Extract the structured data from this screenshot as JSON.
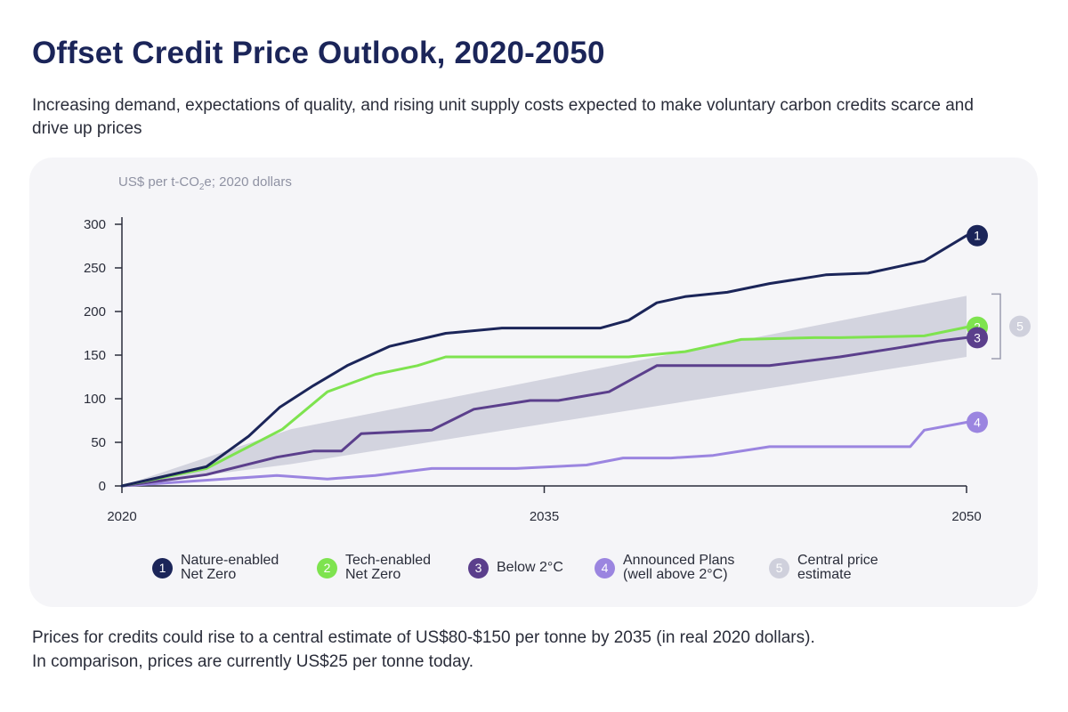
{
  "header": {
    "title": "Offset Credit Price Outlook, 2020-2050",
    "subtitle": "Increasing demand, expectations of quality, and rising unit supply costs expected to make voluntary carbon credits scarce and drive up prices"
  },
  "footer": {
    "line1": "Prices for credits could rise to a central estimate of US$80-$150 per tonne by 2035 (in real 2020 dollars).",
    "line2": "In comparison, prices are currently US$25 per tonne today."
  },
  "unit_label": {
    "main": "US$ per t-CO",
    "sub": "2",
    "tail": "e; 2020 dollars"
  },
  "colors": {
    "nature": "#1b2559",
    "tech": "#7ee34f",
    "below2": "#5b3f8c",
    "announced": "#9b85e0",
    "band": "#cfd0dc",
    "axis": "#2a2d3a",
    "panel": "#f5f5f8"
  },
  "legend": [
    {
      "badge": "1",
      "lines": [
        "Nature-enabled",
        "Net Zero"
      ],
      "color": "#1b2559"
    },
    {
      "badge": "2",
      "lines": [
        "Tech-enabled",
        "Net Zero"
      ],
      "color": "#7ee34f"
    },
    {
      "badge": "3",
      "lines": [
        "Below 2°C"
      ],
      "color": "#5b3f8c"
    },
    {
      "badge": "4",
      "lines": [
        "Announced Plans",
        "(well above 2°C)"
      ],
      "color": "#9b85e0"
    },
    {
      "badge": "5",
      "lines": [
        "Central price",
        "estimate"
      ],
      "color": "#cfd0dc"
    }
  ],
  "chart_data": {
    "type": "line",
    "title": "Offset Credit Price Outlook, 2020-2050",
    "ylabel": "US$ per t-CO2e; 2020 dollars",
    "xlabel": "",
    "xlim": [
      2020,
      2050
    ],
    "ylim": [
      0,
      300
    ],
    "x_ticks": [
      "2020",
      "2035",
      "2050"
    ],
    "y_ticks": [
      0,
      50,
      100,
      150,
      200,
      250,
      300
    ],
    "series": [
      {
        "name": "Nature-enabled Net Zero",
        "badge": "1",
        "color": "#1b2559",
        "x": [
          2020,
          2023,
          2024.5,
          2025.6,
          2026.8,
          2028,
          2029.5,
          2031.5,
          2033.5,
          2035,
          2037,
          2038,
          2039,
          2040,
          2041.5,
          2043,
          2044.6,
          2045,
          2046.5,
          2048.5,
          2050
        ],
        "y": [
          0,
          22,
          57,
          90,
          115,
          138,
          160,
          175,
          181,
          181,
          181,
          190,
          210,
          217,
          222,
          232,
          240,
          242,
          244,
          258,
          287
        ]
      },
      {
        "name": "Tech-enabled Net Zero",
        "badge": "2",
        "color": "#7ee34f",
        "x": [
          2020,
          2023,
          2025.7,
          2027.3,
          2029,
          2030.5,
          2031.5,
          2033.5,
          2036.5,
          2038,
          2040,
          2042,
          2044.6,
          2045.5,
          2048.5,
          2050
        ],
        "y": [
          0,
          20,
          65,
          108,
          128,
          138,
          148,
          148,
          148,
          148,
          154,
          168,
          170,
          170,
          172,
          182
        ]
      },
      {
        "name": "Below 2°C",
        "badge": "3",
        "color": "#5b3f8c",
        "x": [
          2020,
          2023,
          2025.5,
          2026.8,
          2027.8,
          2028.5,
          2029.8,
          2031,
          2032.5,
          2034.5,
          2035.5,
          2037.3,
          2039,
          2041.5,
          2043,
          2045.5,
          2047.5,
          2049,
          2050
        ],
        "y": [
          0,
          13,
          33,
          40,
          40,
          60,
          62,
          64,
          88,
          98,
          98,
          108,
          138,
          138,
          138,
          148,
          158,
          166,
          170
        ]
      },
      {
        "name": "Announced Plans (well above 2°C)",
        "badge": "4",
        "color": "#9b85e0",
        "x": [
          2020,
          2025.5,
          2027.3,
          2029,
          2030,
          2031,
          2034,
          2036.5,
          2037.8,
          2038.5,
          2039.5,
          2041,
          2043,
          2045,
          2046.5,
          2048,
          2048.5,
          2050
        ],
        "y": [
          0,
          12,
          8,
          12,
          16,
          20,
          20,
          24,
          32,
          32,
          32,
          35,
          45,
          45,
          45,
          45,
          64,
          73
        ]
      }
    ],
    "band": {
      "name": "Central price estimate",
      "badge": "5",
      "color": "#cfd0dc",
      "x": [
        2020,
        2026,
        2050
      ],
      "lower": [
        0,
        25,
        148
      ],
      "upper": [
        0,
        65,
        218
      ]
    }
  }
}
